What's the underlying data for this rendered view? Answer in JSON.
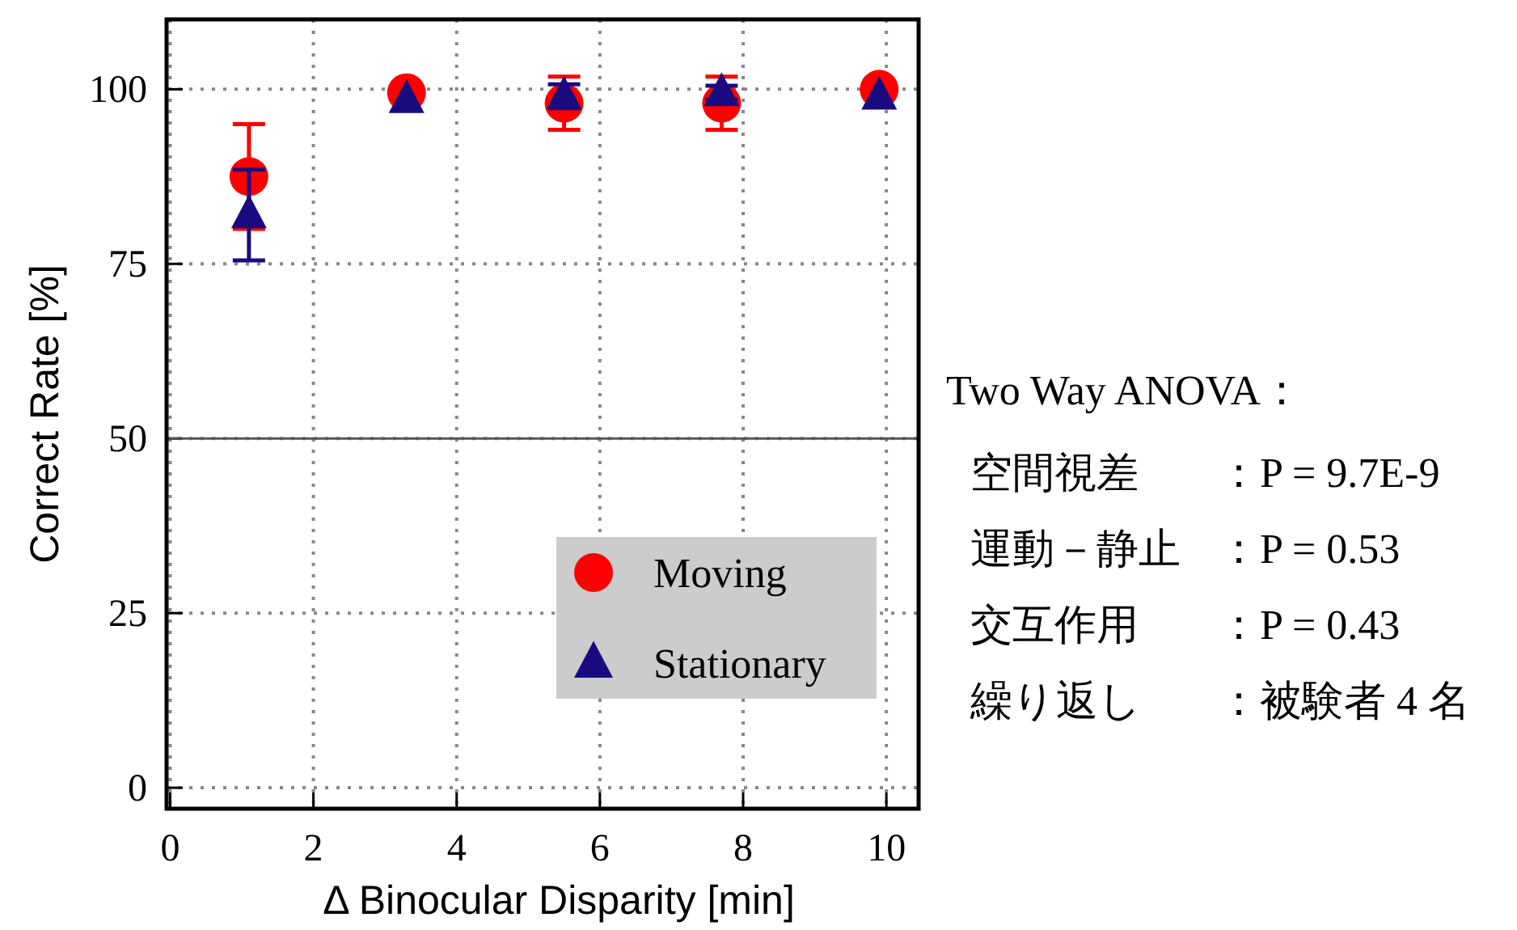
{
  "chart_data": {
    "type": "scatter",
    "xlabel": "Δ Binocular Disparity [min]",
    "ylabel": "Correct Rate [%]",
    "x": [
      1.1,
      3.3,
      5.5,
      7.7,
      9.9
    ],
    "series": [
      {
        "name": "Moving",
        "color": "#ff0000",
        "marker": "circle",
        "values": [
          87.5,
          99.5,
          98,
          98,
          100
        ],
        "errors": [
          7.5,
          null,
          3.8,
          3.8,
          null
        ]
      },
      {
        "name": "Stationary",
        "color": "#1a0a80",
        "marker": "triangle",
        "values": [
          82,
          98.5,
          99,
          99.5,
          99
        ],
        "errors": [
          6.5,
          null,
          1.7,
          1,
          null
        ]
      }
    ],
    "xlim": [
      -0.05,
      10.45
    ],
    "ylim": [
      -3,
      110
    ],
    "xticks": [
      0,
      2,
      4,
      6,
      8,
      10
    ],
    "yticks": [
      0,
      25,
      50,
      75,
      100
    ],
    "grid": true,
    "legend": "bottom right",
    "ref_lines": [
      {
        "axis": "y",
        "value": 50,
        "color": "#555555"
      }
    ],
    "annotations": [
      "Two Way ANOVA：",
      "空間視差",
      "：P = 9.7E-9",
      "運動－静止",
      "：P = 0.53",
      "交互作用",
      "：P = 0.43",
      "繰り返し",
      "：被験者 4 名"
    ]
  }
}
